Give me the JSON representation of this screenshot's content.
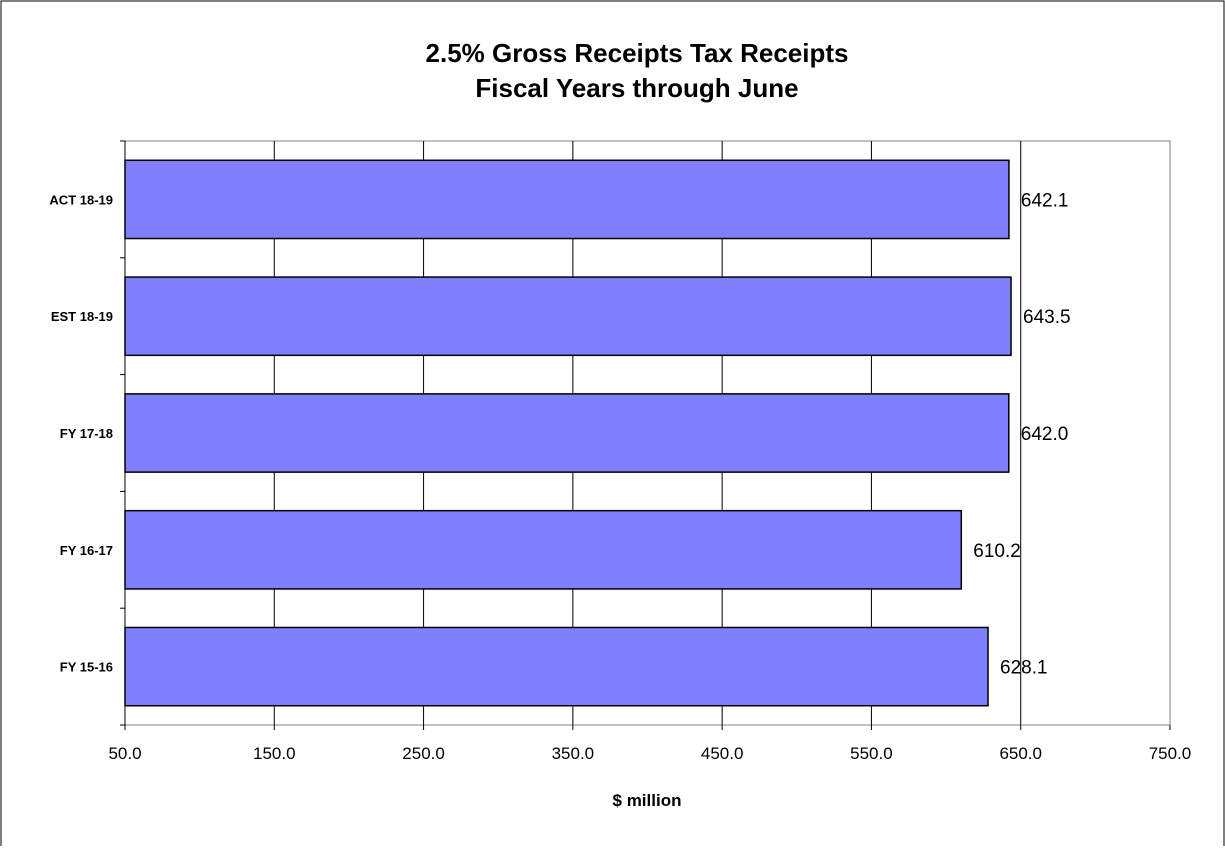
{
  "chart_data": {
    "type": "bar",
    "orientation": "horizontal",
    "title_lines": [
      "2.5% Gross Receipts Tax Receipts",
      "Fiscal Years through June"
    ],
    "categories": [
      "ACT 18-19",
      "EST 18-19",
      "FY 17-18",
      "FY 16-17",
      "FY 15-16"
    ],
    "values": [
      642.1,
      643.5,
      642.0,
      610.2,
      628.1
    ],
    "value_labels": [
      "642.1",
      "643.5",
      "642.0",
      "610.2",
      "628.1"
    ],
    "xlabel": "$ million",
    "ylabel": "",
    "xlim": [
      50,
      750
    ],
    "xticks": [
      50,
      150,
      250,
      350,
      450,
      550,
      650,
      750
    ],
    "xtick_labels": [
      "50.0",
      "150.0",
      "250.0",
      "350.0",
      "450.0",
      "550.0",
      "650.0",
      "750.0"
    ],
    "grid": "vertical",
    "legend": "none",
    "bar_color": "#8080ff",
    "bar_border_color": "#000000"
  }
}
